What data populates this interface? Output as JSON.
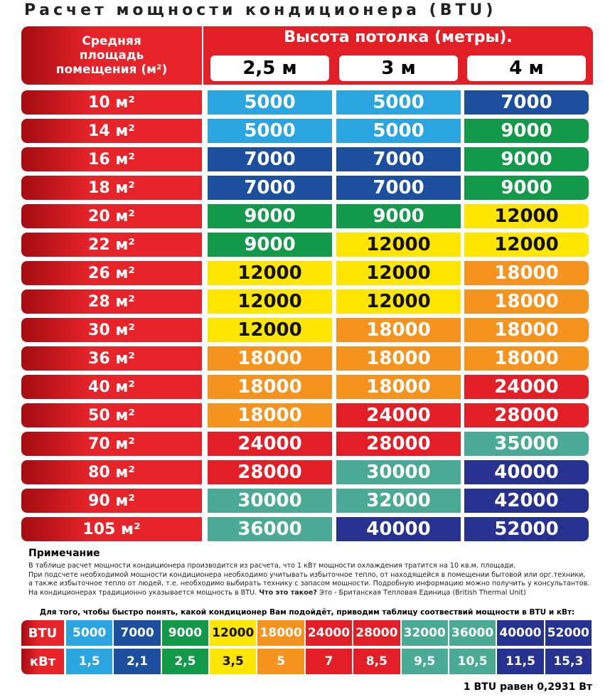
{
  "title": "Расчет мощности кондиционера (BTU)",
  "header": {
    "area": "Средняя площадь помещения (м²)",
    "height": "Высота потолка (метры).",
    "columns": [
      "2,5 м",
      "3 м",
      "4 м"
    ]
  },
  "table": {
    "rows": [
      [
        "10 м²",
        {
          "value": 5000,
          "color": "#2aa5df"
        },
        {
          "value": 5000,
          "color": "#2aa5df"
        },
        {
          "value": 7000,
          "color": "#1c4f9e"
        }
      ],
      [
        "14 м²",
        {
          "value": 5000,
          "color": "#2aa5df"
        },
        {
          "value": 5000,
          "color": "#2aa5df"
        },
        {
          "value": 9000,
          "color": "#13994a"
        }
      ],
      [
        "16 м²",
        {
          "value": 7000,
          "color": "#1c4f9e"
        },
        {
          "value": 7000,
          "color": "#1c4f9e"
        },
        {
          "value": 9000,
          "color": "#13994a"
        }
      ],
      [
        "18 м²",
        {
          "value": 7000,
          "color": "#1c4f9e"
        },
        {
          "value": 7000,
          "color": "#1c4f9e"
        },
        {
          "value": 9000,
          "color": "#13994a"
        }
      ],
      [
        "20 м²",
        {
          "value": 9000,
          "color": "#13994a"
        },
        {
          "value": 9000,
          "color": "#13994a"
        },
        {
          "value": 12000,
          "color": "#ffe600"
        }
      ],
      [
        "22 м²",
        {
          "value": 9000,
          "color": "#13994a"
        },
        {
          "value": 12000,
          "color": "#ffe600"
        },
        {
          "value": 12000,
          "color": "#ffe600"
        }
      ],
      [
        "26 м²",
        {
          "value": 12000,
          "color": "#ffe600"
        },
        {
          "value": 12000,
          "color": "#ffe600"
        },
        {
          "value": 18000,
          "color": "#f4931e"
        }
      ],
      [
        "28 м²",
        {
          "value": 12000,
          "color": "#ffe600"
        },
        {
          "value": 12000,
          "color": "#ffe600"
        },
        {
          "value": 18000,
          "color": "#f4931e"
        }
      ],
      [
        "30 м²",
        {
          "value": 12000,
          "color": "#ffe600"
        },
        {
          "value": 18000,
          "color": "#f4931e"
        },
        {
          "value": 18000,
          "color": "#f4931e"
        }
      ],
      [
        "36 м²",
        {
          "value": 18000,
          "color": "#f4931e"
        },
        {
          "value": 18000,
          "color": "#f4931e"
        },
        {
          "value": 18000,
          "color": "#f4931e"
        }
      ],
      [
        "40 м²",
        {
          "value": 18000,
          "color": "#f4931e"
        },
        {
          "value": 18000,
          "color": "#f4931e"
        },
        {
          "value": 24000,
          "color": "#e21f26"
        }
      ],
      [
        "50 м²",
        {
          "value": 18000,
          "color": "#f4931e"
        },
        {
          "value": 24000,
          "color": "#e21f26"
        },
        {
          "value": 28000,
          "color": "#e21f26"
        }
      ],
      [
        "70 м²",
        {
          "value": 24000,
          "color": "#e21f26"
        },
        {
          "value": 28000,
          "color": "#e21f26"
        },
        {
          "value": 35000,
          "color": "#4aaa95"
        }
      ],
      [
        "80 м²",
        {
          "value": 28000,
          "color": "#e21f26"
        },
        {
          "value": 30000,
          "color": "#4aaa95"
        },
        {
          "value": 40000,
          "color": "#27318f"
        }
      ],
      [
        "90 м²",
        {
          "value": 30000,
          "color": "#4aaa95"
        },
        {
          "value": 32000,
          "color": "#4aaa95"
        },
        {
          "value": 42000,
          "color": "#27318f"
        }
      ],
      [
        "105 м²",
        {
          "value": 36000,
          "color": "#4aaa95"
        },
        {
          "value": 40000,
          "color": "#27318f"
        },
        {
          "value": 52000,
          "color": "#27318f"
        }
      ]
    ]
  },
  "note": {
    "title": "Примечание",
    "lines": [
      "В таблице расчет мощности кондиционера производится из расчета,  что 1 кВт  мощности охлаждения тратится на 10 кв.м. площади.",
      "При подсчете необходимой мощности кондиционера  необходимо учитывать  избыточное тепло, от находящейся в помещении бытовой или орг.техники,",
      "а также  избыточное тепло  от людей, т.е. необходимо выбирать технику с запасом мощности. Подробную информацию можно получить у консультантов."
    ],
    "last": [
      "На кондиционерах традиционно указывается мощность в BTU.",
      "Что это такое?",
      "Это - Британская Тепловая Единица (British Thermal Unit)"
    ]
  },
  "legend": {
    "intro": "Для того, чтобы быстро понять, какой кондиционер Вам подойдёт, приводим таблицу соотвествий мощности в BTU и кВт:",
    "btu_label": "BTU",
    "kw_label": "кВт",
    "btu": [
      5000,
      7000,
      9000,
      12000,
      18000,
      24000,
      28000,
      32000,
      36000,
      40000,
      52000
    ],
    "kw": [
      "1,5",
      "2,1",
      "2,5",
      "3,5",
      "5",
      "7",
      "8,5",
      "9,5",
      "10,5",
      "11,5",
      "15,3"
    ],
    "colors": [
      "#2aa5df",
      "#1c4f9e",
      "#13994a",
      "#ffe600",
      "#f4931e",
      "#e21f26",
      "#e21f26",
      "#4aaa95",
      "#4aaa95",
      "#27318f",
      "#27318f"
    ]
  },
  "footer": "1 BTU равен 0,2931 Вт"
}
